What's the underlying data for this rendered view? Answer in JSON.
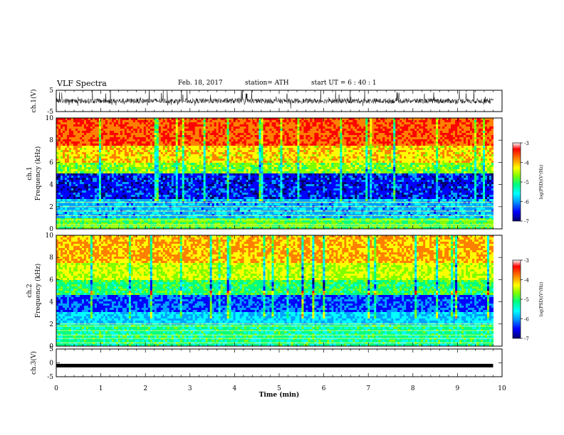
{
  "header": {
    "title": "VLF Spectra",
    "date": "Feb. 18, 2017",
    "station": "station= ATH",
    "start": "start  UT  =   6  : 40 : 1"
  },
  "chart_data": [
    {
      "type": "line",
      "panel": "ch1-waveform",
      "ylabel": "ch.1(V)",
      "ylim": [
        -5,
        5
      ],
      "ytick_labels": [
        "-5",
        "5"
      ],
      "xlim": [
        0,
        10
      ],
      "description_series": "dense black time-series waveform"
    },
    {
      "type": "heatmap",
      "panel": "ch1-spectrogram",
      "ylabel_top": "ch.1",
      "ylabel": "Frequency  (kHz)",
      "ylim": [
        0,
        10
      ],
      "ytick_labels": [
        "0",
        "2",
        "4",
        "6",
        "8",
        "10"
      ],
      "xlim": [
        0,
        10
      ],
      "colorbar": {
        "label": "log(PSD)(V²/Hz)",
        "range": [
          -7,
          -3
        ],
        "tick_labels": [
          "-3",
          "-4",
          "-5",
          "-6",
          "-7"
        ],
        "colors": [
          "#00006e",
          "#0000ff",
          "#00a0ff",
          "#00ffff",
          "#00ff80",
          "#80ff00",
          "#ffff00",
          "#ff8000",
          "#ff0000",
          "#ffffff"
        ]
      }
    },
    {
      "type": "heatmap",
      "panel": "ch2-spectrogram",
      "ylabel_top": "ch.2",
      "ylabel": "Frequency  (kHz)",
      "ylim": [
        0,
        10
      ],
      "ytick_labels": [
        "0",
        "2",
        "4",
        "6",
        "8",
        "10"
      ],
      "xlim": [
        0,
        10
      ],
      "colorbar": {
        "label": "log(PSD)(V²/Hz)",
        "range": [
          -7,
          -3
        ],
        "tick_labels": [
          "-3",
          "-4",
          "-5",
          "-6",
          "-7"
        ]
      }
    },
    {
      "type": "line",
      "panel": "ch3-waveform",
      "ylabel": "ch.3(V)",
      "ylim": [
        -5,
        5
      ],
      "ytick_labels": [
        "5",
        "0",
        "-5"
      ],
      "xlim": [
        0,
        10
      ],
      "constant_value": -1,
      "xlabel": "Time  (min)",
      "xtick_labels": [
        "0",
        "1",
        "2",
        "3",
        "4",
        "5",
        "6",
        "7",
        "8",
        "9",
        "10"
      ]
    }
  ]
}
